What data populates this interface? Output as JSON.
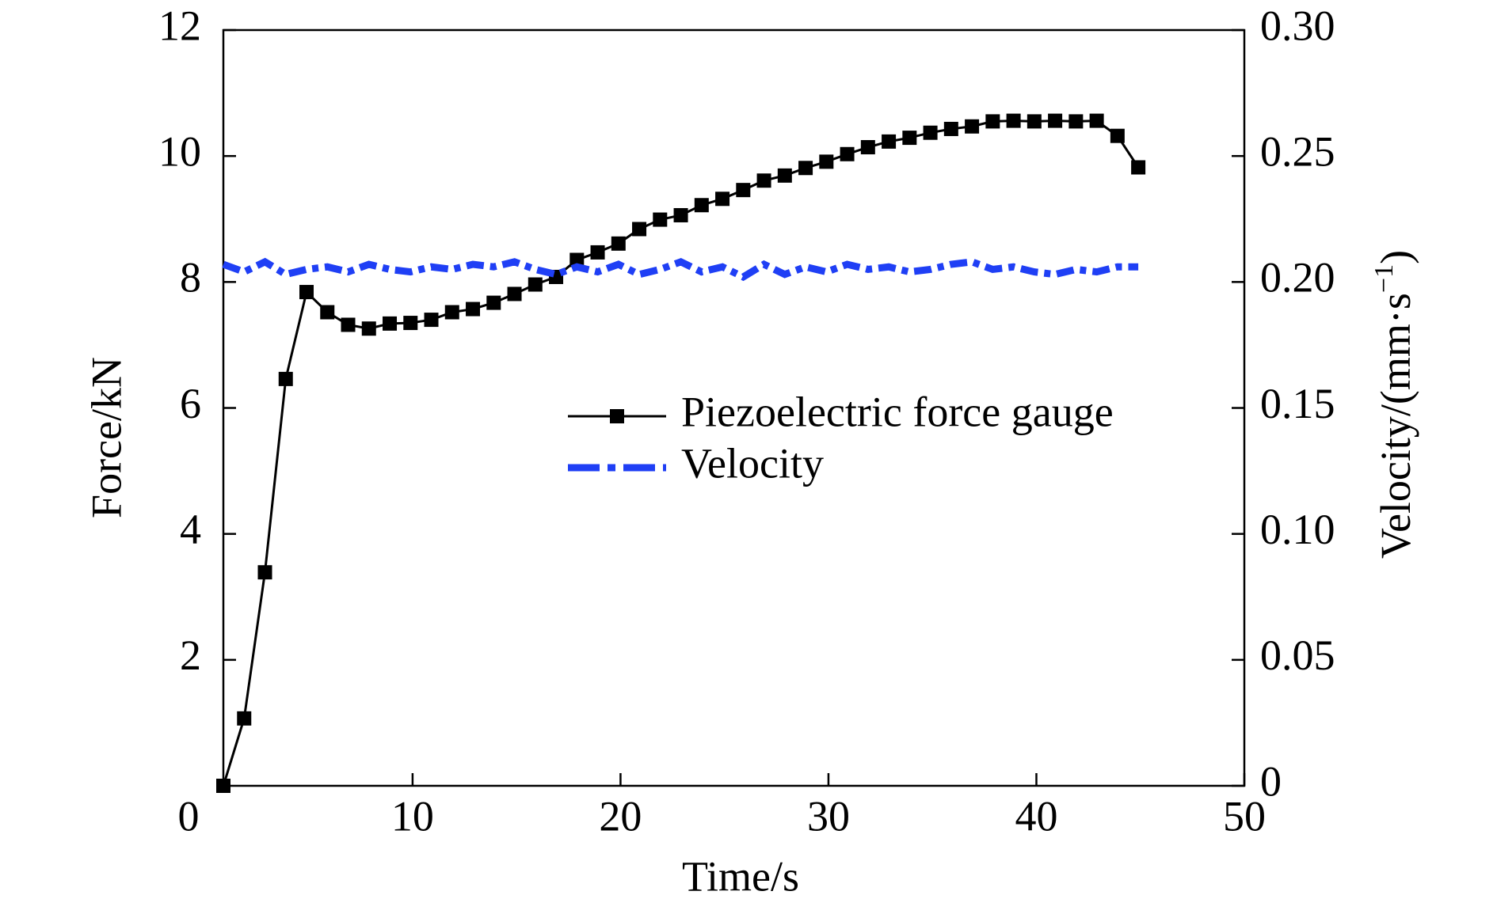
{
  "chart_data": {
    "type": "line",
    "xlabel": "Time/s",
    "ylabel": "Force/kN",
    "y2label": [
      "Velocity/(mm·s",
      "−1",
      ")"
    ],
    "origin_label": "0",
    "x": [
      0.9,
      1.9,
      2.9,
      3.9,
      4.9,
      5.9,
      6.9,
      7.9,
      8.9,
      9.9,
      10.9,
      11.9,
      12.9,
      13.9,
      14.9,
      15.9,
      16.9,
      17.9,
      18.9,
      19.9,
      20.9,
      21.9,
      22.9,
      23.9,
      24.9,
      25.9,
      26.9,
      27.9,
      28.9,
      29.9,
      30.9,
      31.9,
      32.9,
      33.9,
      34.9,
      35.9,
      36.9,
      37.9,
      38.9,
      39.9,
      40.9,
      41.9,
      42.9,
      43.9,
      44.9
    ],
    "series": [
      {
        "name": "Piezoelectric force gauge",
        "color": "#000000",
        "axis": "y",
        "values": [
          0.0,
          1.07,
          3.39,
          6.46,
          7.84,
          7.52,
          7.32,
          7.26,
          7.34,
          7.35,
          7.4,
          7.52,
          7.57,
          7.67,
          7.81,
          7.96,
          8.08,
          8.35,
          8.47,
          8.61,
          8.84,
          8.99,
          9.06,
          9.22,
          9.32,
          9.46,
          9.61,
          9.69,
          9.81,
          9.91,
          10.03,
          10.14,
          10.23,
          10.29,
          10.37,
          10.43,
          10.47,
          10.55,
          10.56,
          10.55,
          10.56,
          10.55,
          10.56,
          10.32,
          9.82
        ]
      },
      {
        "name": "Velocity",
        "color": "#1f3ff5",
        "axis": "y2",
        "values": [
          0.207,
          0.204,
          0.208,
          0.203,
          0.205,
          0.206,
          0.204,
          0.207,
          0.205,
          0.204,
          0.206,
          0.205,
          0.207,
          0.206,
          0.208,
          0.205,
          0.203,
          0.206,
          0.204,
          0.207,
          0.203,
          0.205,
          0.208,
          0.204,
          0.206,
          0.202,
          0.207,
          0.203,
          0.206,
          0.204,
          0.207,
          0.205,
          0.206,
          0.204,
          0.205,
          0.207,
          0.208,
          0.205,
          0.206,
          0.204,
          0.203,
          0.205,
          0.204,
          0.206,
          0.206
        ]
      }
    ],
    "xlim": [
      0.9,
      50
    ],
    "xticks": [
      10,
      20,
      30,
      40,
      50
    ],
    "ylim": [
      0,
      12
    ],
    "yticks": [
      2,
      4,
      6,
      8,
      10,
      12
    ],
    "y2lim": [
      0,
      0.3
    ],
    "y2ticks": [
      {
        "value": 0,
        "label": "0"
      },
      0.05,
      {
        "value": 0.1,
        "label": "0.10"
      },
      0.15,
      {
        "value": 0.2,
        "label": "0.20"
      },
      0.25,
      {
        "value": 0.3,
        "label": "0.30"
      }
    ],
    "legend": "center-right"
  }
}
